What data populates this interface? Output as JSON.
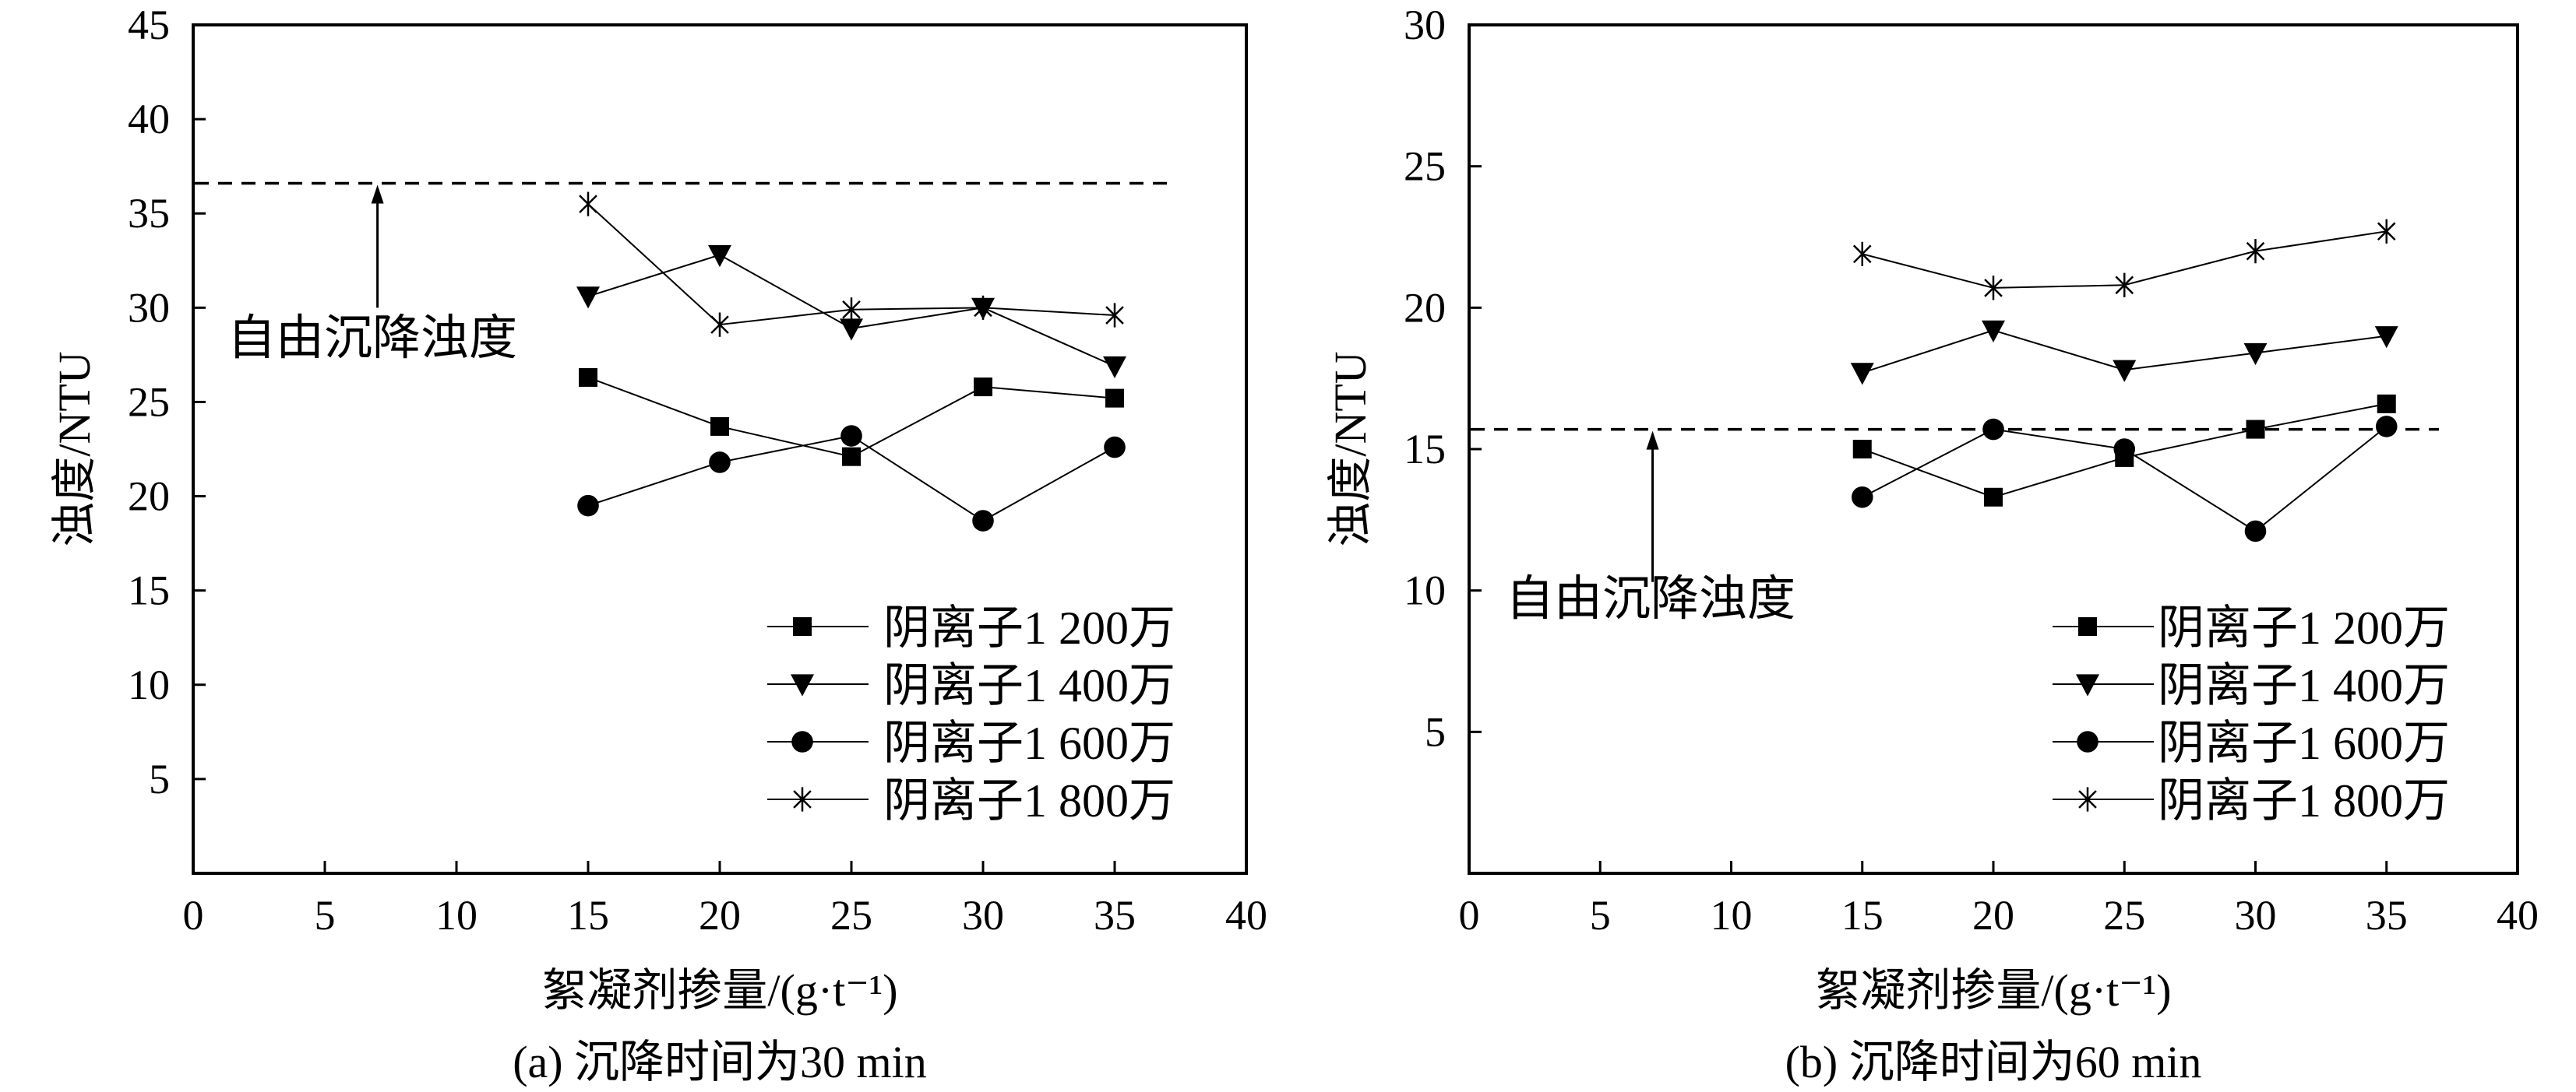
{
  "chart_data": [
    {
      "type": "line",
      "id": "a",
      "caption": "(a) 沉降时间为30 min",
      "xlabel": "絮凝剂掺量/(g·t⁻¹)",
      "ylabel": "浊度/NTU",
      "xlim": [
        0,
        40
      ],
      "ylim": [
        0,
        45
      ],
      "xticks": [
        0,
        5,
        10,
        15,
        20,
        25,
        30,
        35,
        40
      ],
      "yticks": [
        5,
        10,
        15,
        20,
        25,
        30,
        35,
        40,
        45
      ],
      "x": [
        15,
        20,
        25,
        30,
        35
      ],
      "series": [
        {
          "name": "阴离子1 200万",
          "marker": "square",
          "values": [
            26.3,
            23.7,
            22.1,
            25.8,
            25.2
          ]
        },
        {
          "name": "阴离子1 400万",
          "marker": "triangle-down",
          "values": [
            30.6,
            32.8,
            28.9,
            30.0,
            26.9
          ]
        },
        {
          "name": "阴离子1 600万",
          "marker": "circle",
          "values": [
            19.5,
            21.8,
            23.2,
            18.7,
            22.6
          ]
        },
        {
          "name": "阴离子1 800万",
          "marker": "asterisk",
          "values": [
            35.5,
            29.1,
            29.9,
            30.0,
            29.6
          ]
        }
      ],
      "reference_line": {
        "label": "自由沉降浊度",
        "value": 36.6,
        "x_end": 37,
        "arrow_x": 7,
        "arrow_from": 30
      },
      "legend": "bottom-right",
      "grid": false
    },
    {
      "type": "line",
      "id": "b",
      "caption": "(b) 沉降时间为60 min",
      "xlabel": "絮凝剂掺量/(g·t⁻¹)",
      "ylabel": "浊度/NTU",
      "xlim": [
        0,
        40
      ],
      "ylim": [
        0,
        30
      ],
      "xticks": [
        0,
        5,
        10,
        15,
        20,
        25,
        30,
        35,
        40
      ],
      "yticks": [
        5,
        10,
        15,
        20,
        25,
        30
      ],
      "x": [
        15,
        20,
        25,
        30,
        35
      ],
      "series": [
        {
          "name": "阴离子1 200万",
          "marker": "square",
          "values": [
            15.0,
            13.3,
            14.7,
            15.7,
            16.6
          ]
        },
        {
          "name": "阴离子1 400万",
          "marker": "triangle-down",
          "values": [
            17.7,
            19.2,
            17.8,
            18.4,
            19.0
          ]
        },
        {
          "name": "阴离子1 600万",
          "marker": "circle",
          "values": [
            13.3,
            15.7,
            15.0,
            12.1,
            15.8
          ]
        },
        {
          "name": "阴离子1 800万",
          "marker": "asterisk",
          "values": [
            21.9,
            20.7,
            20.8,
            22.0,
            22.7
          ]
        }
      ],
      "reference_line": {
        "label": "自由沉降浊度",
        "value": 15.7,
        "x_end": 37,
        "arrow_x": 7,
        "arrow_from": 10.3
      },
      "legend": "bottom-right",
      "grid": false
    }
  ]
}
